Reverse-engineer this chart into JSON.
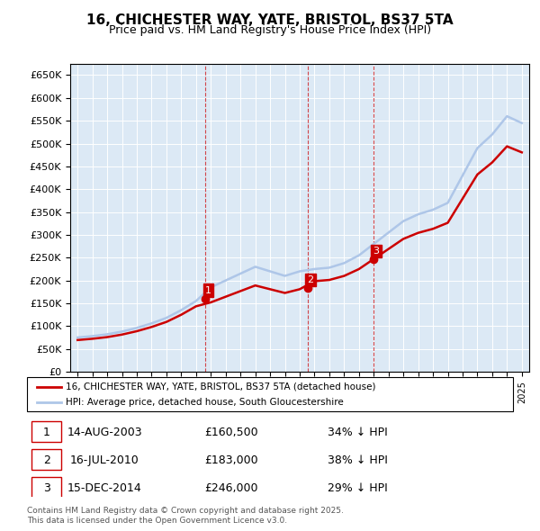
{
  "title": "16, CHICHESTER WAY, YATE, BRISTOL, BS37 5TA",
  "subtitle": "Price paid vs. HM Land Registry's House Price Index (HPI)",
  "hpi_years": [
    1995,
    1996,
    1997,
    1998,
    1999,
    2000,
    2001,
    2002,
    2003,
    2004,
    2005,
    2006,
    2007,
    2008,
    2009,
    2010,
    2011,
    2012,
    2013,
    2014,
    2015,
    2016,
    2017,
    2018,
    2019,
    2020,
    2021,
    2022,
    2023,
    2024,
    2025
  ],
  "hpi_values": [
    75000,
    78000,
    82000,
    88000,
    96000,
    106000,
    118000,
    135000,
    155000,
    185000,
    200000,
    215000,
    230000,
    220000,
    210000,
    220000,
    225000,
    228000,
    238000,
    255000,
    280000,
    305000,
    330000,
    345000,
    355000,
    370000,
    430000,
    490000,
    520000,
    560000,
    545000
  ],
  "sale_years": [
    2003.617,
    2010.536,
    2014.956
  ],
  "sale_values": [
    160500,
    183000,
    246000
  ],
  "sale_labels": [
    "1",
    "2",
    "3"
  ],
  "sale_dates": [
    "14-AUG-2003",
    "16-JUL-2010",
    "15-DEC-2014"
  ],
  "sale_prices": [
    "£160,500",
    "£183,000",
    "£246,000"
  ],
  "sale_pct": [
    "34% ↓ HPI",
    "38% ↓ HPI",
    "29% ↓ HPI"
  ],
  "vline_years": [
    2003.617,
    2010.536,
    2014.956
  ],
  "hpi_color": "#aec6e8",
  "sale_color": "#cc0000",
  "vline_color": "#cc0000",
  "ylim": [
    0,
    675000
  ],
  "ytick_step": 50000,
  "background_color": "#dce9f5",
  "plot_bg": "#dce9f5",
  "legend_label_red": "16, CHICHESTER WAY, YATE, BRISTOL, BS37 5TA (detached house)",
  "legend_label_blue": "HPI: Average price, detached house, South Gloucestershire",
  "footer": "Contains HM Land Registry data © Crown copyright and database right 2025.\nThis data is licensed under the Open Government Licence v3.0."
}
